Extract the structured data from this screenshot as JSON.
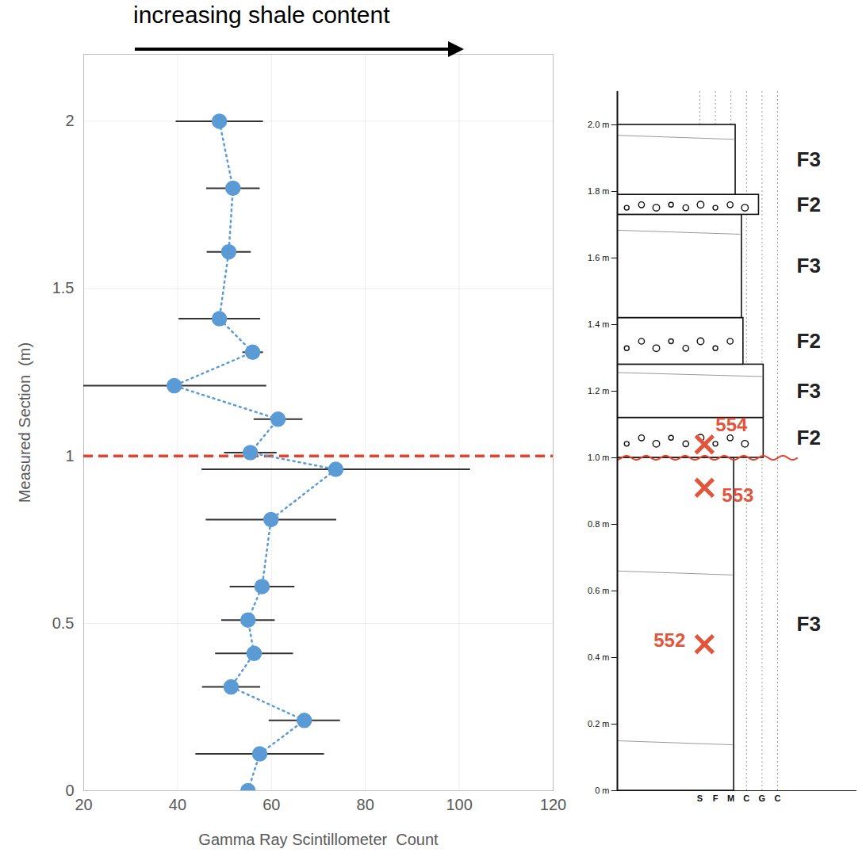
{
  "chart_data": [
    {
      "type": "scatter",
      "annotation": "increasing shale content",
      "x_label": "Gamma Ray Scintillometer  Count",
      "y_label": "Measured Section  (m)",
      "xlim": [
        20,
        120
      ],
      "xticks": [
        20,
        40,
        60,
        80,
        100,
        120
      ],
      "ylim": [
        0,
        2.2
      ],
      "yticks": [
        0,
        0.5,
        1,
        1.5,
        2
      ],
      "grid": true,
      "marker": "circle",
      "line_style": "dotted",
      "color": "#5b9bd5",
      "x": [
        55.0,
        57.5,
        67.0,
        51.4,
        56.3,
        55.0,
        58.0,
        59.9,
        73.7,
        55.5,
        61.4,
        39.3,
        56.0,
        48.9,
        50.9,
        51.8,
        48.9
      ],
      "y": [
        0,
        0.11,
        0.21,
        0.31,
        0.41,
        0.51,
        0.61,
        0.81,
        0.96,
        1.01,
        1.11,
        1.21,
        1.31,
        1.41,
        1.61,
        1.8,
        2.0
      ],
      "xerr": [
        0,
        13.7,
        7.6,
        6.2,
        8.3,
        5.7,
        6.9,
        13.9,
        28.6,
        5.6,
        5.2,
        19.6,
        2.2,
        8.7,
        4.7,
        5.7,
        9.3
      ],
      "reference_line": {
        "y": 1,
        "color": "#e8412c",
        "line_style": "dashed"
      }
    },
    {
      "type": "stratigraphic_column",
      "ylim": [
        0,
        2.1
      ],
      "yticks": [
        {
          "value": 0,
          "label": "0 m"
        },
        {
          "value": 0.2,
          "label": "0.2 m"
        },
        {
          "value": 0.4,
          "label": "0.4 m"
        },
        {
          "value": 0.6,
          "label": "0.6 m"
        },
        {
          "value": 0.8,
          "label": "0.8 m"
        },
        {
          "value": 1.0,
          "label": "1.0 m"
        },
        {
          "value": 1.2,
          "label": "1.2 m"
        },
        {
          "value": 1.4,
          "label": "1.4 m"
        },
        {
          "value": 1.6,
          "label": "1.6 m"
        },
        {
          "value": 1.8,
          "label": "1.8 m"
        },
        {
          "value": 2.0,
          "label": "2.0 m"
        }
      ],
      "grain_classes": [
        "S",
        "F",
        "M",
        "C",
        "G",
        "C"
      ],
      "beds": [
        {
          "facies": "F3",
          "base": 0,
          "top": 1.0,
          "grain": 2.2
        },
        {
          "facies": "F2",
          "base": 1.0,
          "top": 1.12,
          "grain": 4.1
        },
        {
          "facies": "F3",
          "base": 1.12,
          "top": 1.28,
          "grain": 4.1
        },
        {
          "facies": "F2",
          "base": 1.28,
          "top": 1.42,
          "grain": 2.8
        },
        {
          "facies": "F3",
          "base": 1.42,
          "top": 1.73,
          "grain": 2.7
        },
        {
          "facies": "F2",
          "base": 1.73,
          "top": 1.79,
          "grain": 3.8
        },
        {
          "facies": "F3",
          "base": 1.79,
          "top": 2.0,
          "grain": 2.3
        }
      ],
      "erosional_base": 1.0,
      "samples": [
        {
          "label": "552",
          "y": 0.44
        },
        {
          "label": "553",
          "y": 0.91
        },
        {
          "label": "554",
          "y": 1.04
        }
      ],
      "sample_color": "#e2553c"
    }
  ]
}
